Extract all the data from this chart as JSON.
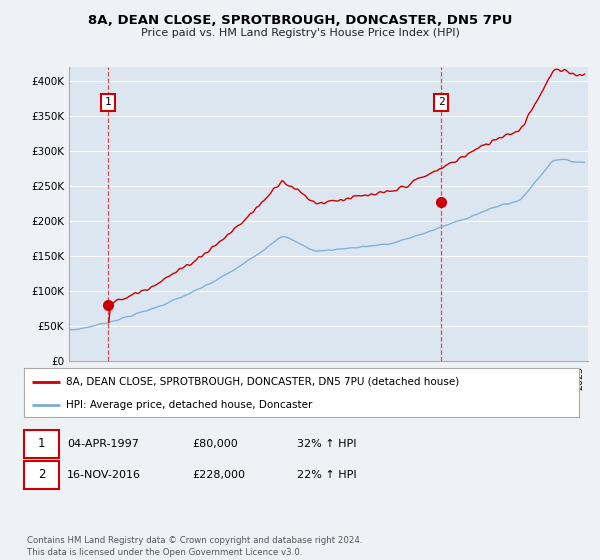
{
  "title1": "8A, DEAN CLOSE, SPROTBROUGH, DONCASTER, DN5 7PU",
  "title2": "Price paid vs. HM Land Registry's House Price Index (HPI)",
  "background_color": "#eef2f7",
  "plot_bg_color": "#dce6f0",
  "grid_color": "#ffffff",
  "sale1_date": 1997.27,
  "sale1_price": 80000,
  "sale2_date": 2016.88,
  "sale2_price": 228000,
  "legend_line1": "8A, DEAN CLOSE, SPROTBROUGH, DONCASTER, DN5 7PU (detached house)",
  "legend_line2": "HPI: Average price, detached house, Doncaster",
  "footer": "Contains HM Land Registry data © Crown copyright and database right 2024.\nThis data is licensed under the Open Government Licence v3.0.",
  "xmin": 1995,
  "xmax": 2025.5,
  "ymin": 0,
  "ymax": 420000,
  "red_color": "#cc0000",
  "blue_color": "#7aadd4"
}
